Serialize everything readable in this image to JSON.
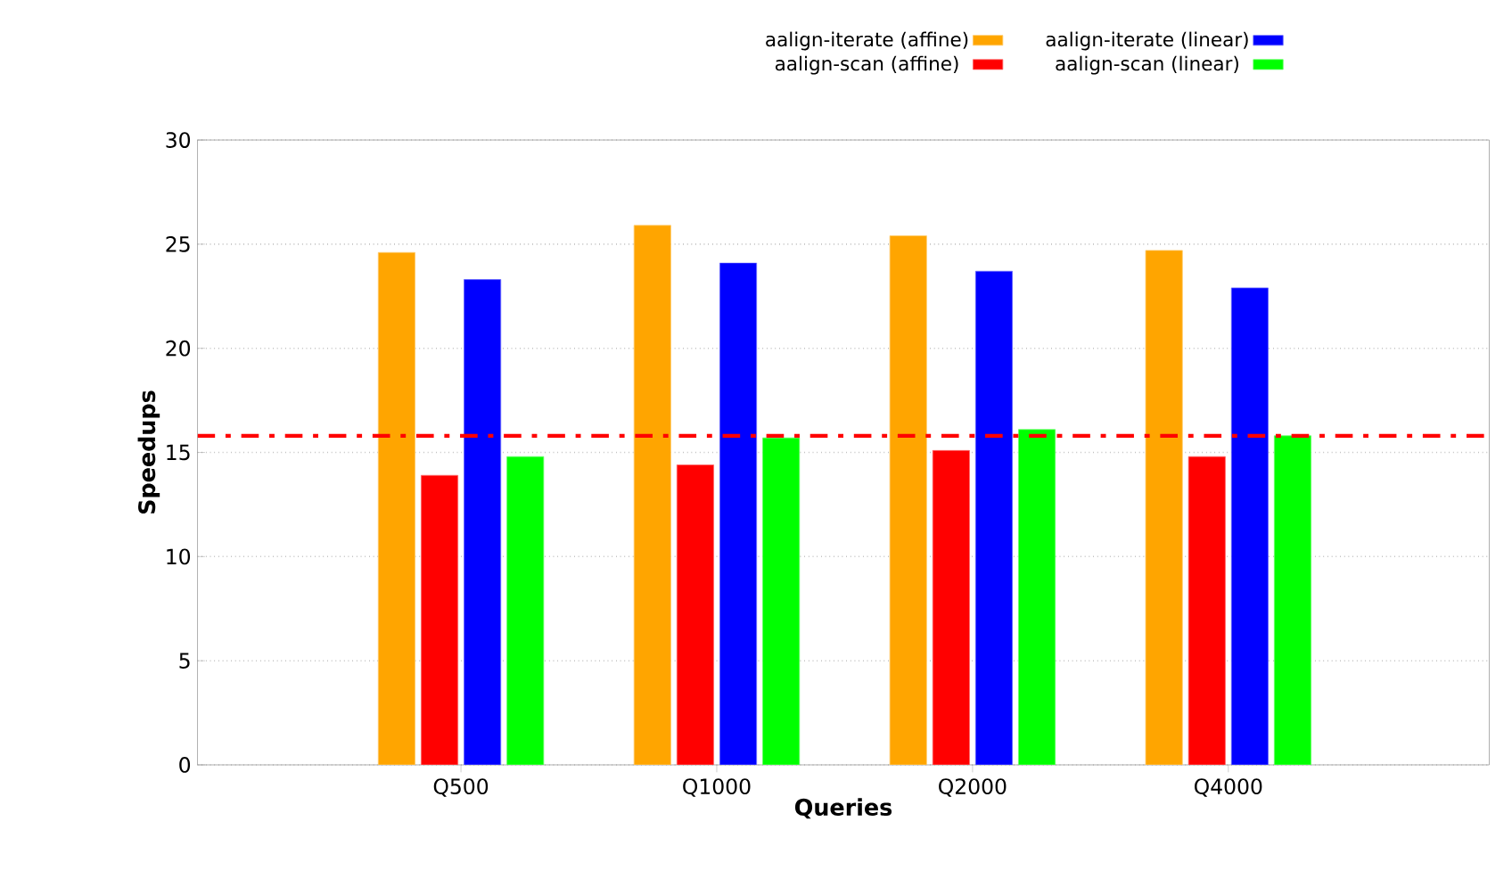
{
  "chart_data": {
    "type": "bar",
    "xlabel": "Queries",
    "ylabel": "Speedups",
    "categories": [
      "Q500",
      "Q1000",
      "Q2000",
      "Q4000"
    ],
    "series": [
      {
        "name": "aalign-iterate (affine)",
        "color": "#ffa500",
        "values": [
          24.6,
          25.9,
          25.4,
          24.7
        ]
      },
      {
        "name": "aalign-scan (affine)",
        "color": "#ff0000",
        "values": [
          13.9,
          14.4,
          15.1,
          14.8
        ]
      },
      {
        "name": "aalign-iterate (linear)",
        "color": "#0000ff",
        "values": [
          23.3,
          24.1,
          23.7,
          22.9
        ]
      },
      {
        "name": "aalign-scan (linear)",
        "color": "#00ff00",
        "values": [
          14.8,
          15.7,
          16.1,
          15.8
        ]
      }
    ],
    "ylim": [
      0,
      30
    ],
    "yticks": [
      0,
      5,
      10,
      15,
      20,
      25,
      30
    ],
    "ref_lines": [
      {
        "axis": "y",
        "value": 15.8,
        "color": "#ff0000",
        "line_style": "dashdot"
      }
    ],
    "grid": "y",
    "legend": "top"
  }
}
